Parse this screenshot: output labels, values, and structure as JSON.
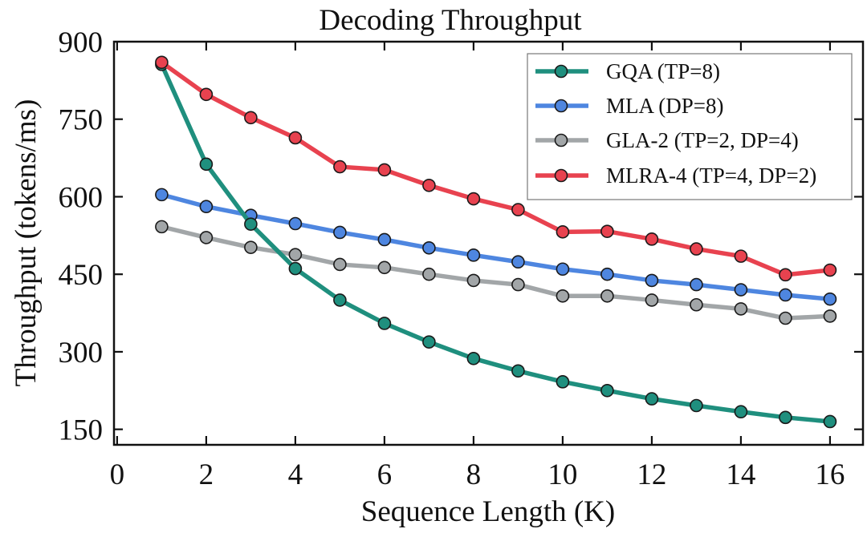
{
  "chart_data": {
    "type": "line",
    "title": "Decoding Throughput",
    "xlabel": "Sequence Length (K)",
    "ylabel": "Throughput (tokens/ms)",
    "xlim": [
      -0.07,
      16.74
    ],
    "ylim": [
      120,
      900
    ],
    "xticks": [
      0,
      2,
      4,
      6,
      8,
      10,
      12,
      14,
      16
    ],
    "xtick_labels": [
      "0",
      "2",
      "4",
      "6",
      "8",
      "10",
      "12",
      "14",
      "16"
    ],
    "yticks": [
      150,
      300,
      450,
      600,
      750,
      900
    ],
    "ytick_labels": [
      "150",
      "300",
      "450",
      "600",
      "750",
      "900"
    ],
    "grid": false,
    "legend_position": "top-right",
    "x": [
      1,
      2,
      3,
      4,
      5,
      6,
      7,
      8,
      9,
      10,
      11,
      12,
      13,
      14,
      15,
      16
    ],
    "series": [
      {
        "name": "GQA (TP=8)",
        "color": "#1f8f7e",
        "values": [
          856,
          663,
          547,
          461,
          400,
          355,
          319,
          287,
          263,
          242,
          225,
          209,
          196,
          184,
          173,
          165
        ]
      },
      {
        "name": "MLA (DP=8)",
        "color": "#4e86e0",
        "values": [
          604,
          581,
          564,
          548,
          531,
          517,
          501,
          487,
          474,
          460,
          450,
          438,
          430,
          420,
          410,
          402
        ]
      },
      {
        "name": "GLA-2 (TP=2, DP=4)",
        "color": "#a2a6a8",
        "values": [
          542,
          521,
          502,
          488,
          469,
          463,
          450,
          438,
          430,
          408,
          408,
          400,
          391,
          383,
          365,
          369
        ]
      },
      {
        "name": "MLRA-4 (TP=4, DP=2)",
        "color": "#e8424f",
        "values": [
          860,
          798,
          753,
          714,
          658,
          652,
          622,
          596,
          575,
          532,
          533,
          518,
          499,
          485,
          449,
          458
        ]
      }
    ]
  }
}
